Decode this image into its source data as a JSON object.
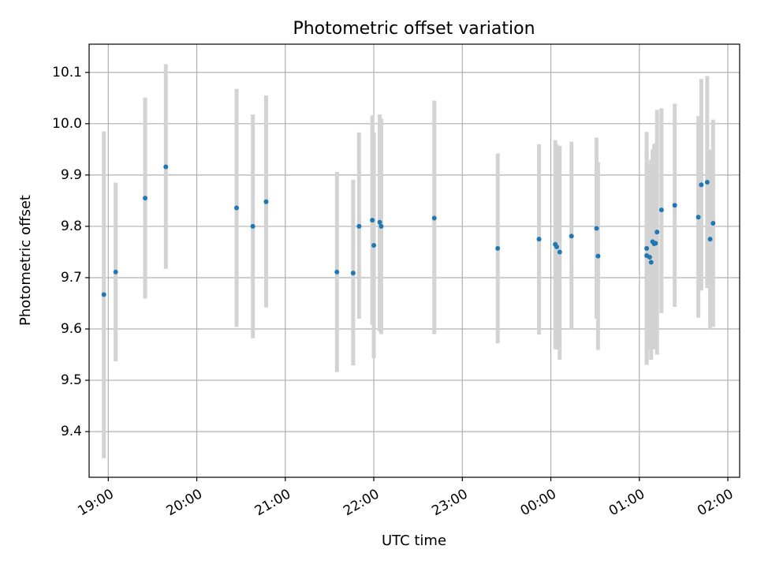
{
  "chart_data": {
    "type": "scatter",
    "title": "Photometric offset variation",
    "xlabel": "UTC time",
    "ylabel": "Photometric offset",
    "x_tick_labels": [
      "19:00",
      "20:00",
      "21:00",
      "22:00",
      "23:00",
      "00:00",
      "01:00",
      "02:00"
    ],
    "y_tick_labels": [
      "9.4",
      "9.5",
      "9.6",
      "9.7",
      "9.8",
      "9.9",
      "10.0",
      "10.1"
    ],
    "x_ticks": [
      "19:00",
      "20:00",
      "21:00",
      "22:00",
      "23:00",
      "00:00",
      "01:00",
      "02:00"
    ],
    "y_ticks": [
      9.4,
      9.5,
      9.6,
      9.7,
      9.8,
      9.9,
      10.0,
      10.1
    ],
    "xlim": [
      "18:47",
      "02:08"
    ],
    "ylim": [
      9.311,
      10.155
    ],
    "grid": true,
    "marker_color": "#1f77b4",
    "errorbar_color": "#d3d3d3",
    "points": [
      {
        "t": "18:57",
        "y": 9.667,
        "lo": 9.348,
        "hi": 9.985
      },
      {
        "t": "19:05",
        "y": 9.711,
        "lo": 9.537,
        "hi": 9.885
      },
      {
        "t": "19:25",
        "y": 9.855,
        "lo": 9.659,
        "hi": 10.051
      },
      {
        "t": "19:39",
        "y": 9.916,
        "lo": 9.717,
        "hi": 10.116
      },
      {
        "t": "20:27",
        "y": 9.836,
        "lo": 9.604,
        "hi": 10.068
      },
      {
        "t": "20:38",
        "y": 9.8,
        "lo": 9.582,
        "hi": 10.018
      },
      {
        "t": "20:47",
        "y": 9.848,
        "lo": 9.642,
        "hi": 10.055
      },
      {
        "t": "21:35",
        "y": 9.711,
        "lo": 9.516,
        "hi": 9.906
      },
      {
        "t": "21:46",
        "y": 9.709,
        "lo": 9.529,
        "hi": 9.891
      },
      {
        "t": "21:50",
        "y": 9.8,
        "lo": 9.62,
        "hi": 9.983
      },
      {
        "t": "21:59",
        "y": 9.812,
        "lo": 9.608,
        "hi": 10.016
      },
      {
        "t": "22:00",
        "y": 9.763,
        "lo": 9.543,
        "hi": 9.983
      },
      {
        "t": "22:04",
        "y": 9.808,
        "lo": 9.595,
        "hi": 10.018
      },
      {
        "t": "22:05",
        "y": 9.8,
        "lo": 9.59,
        "hi": 10.01
      },
      {
        "t": "22:41",
        "y": 9.816,
        "lo": 9.59,
        "hi": 10.045
      },
      {
        "t": "23:24",
        "y": 9.757,
        "lo": 9.572,
        "hi": 9.942
      },
      {
        "t": "23:52",
        "y": 9.775,
        "lo": 9.589,
        "hi": 9.96
      },
      {
        "t": "00:03",
        "y": 9.765,
        "lo": 9.561,
        "hi": 9.968
      },
      {
        "t": "00:04",
        "y": 9.76,
        "lo": 9.56,
        "hi": 9.96
      },
      {
        "t": "00:06",
        "y": 9.75,
        "lo": 9.54,
        "hi": 9.957
      },
      {
        "t": "00:14",
        "y": 9.781,
        "lo": 9.6,
        "hi": 9.965
      },
      {
        "t": "00:31",
        "y": 9.796,
        "lo": 9.62,
        "hi": 9.973
      },
      {
        "t": "00:32",
        "y": 9.742,
        "lo": 9.559,
        "hi": 9.925
      },
      {
        "t": "01:05",
        "y": 9.757,
        "lo": 9.547,
        "hi": 9.945
      },
      {
        "t": "01:05",
        "y": 9.743,
        "lo": 9.53,
        "hi": 9.984
      },
      {
        "t": "01:07",
        "y": 9.74,
        "lo": 9.56,
        "hi": 9.92
      },
      {
        "t": "01:08",
        "y": 9.73,
        "lo": 9.54,
        "hi": 9.93
      },
      {
        "t": "01:09",
        "y": 9.77,
        "lo": 9.57,
        "hi": 9.95
      },
      {
        "t": "01:10",
        "y": 9.766,
        "lo": 9.56,
        "hi": 9.96
      },
      {
        "t": "01:11",
        "y": 9.767,
        "lo": 9.58,
        "hi": 9.962
      },
      {
        "t": "01:12",
        "y": 9.789,
        "lo": 9.55,
        "hi": 10.027
      },
      {
        "t": "01:15",
        "y": 9.832,
        "lo": 9.631,
        "hi": 10.03
      },
      {
        "t": "01:24",
        "y": 9.841,
        "lo": 9.643,
        "hi": 10.039
      },
      {
        "t": "01:40",
        "y": 9.818,
        "lo": 9.622,
        "hi": 10.015
      },
      {
        "t": "01:42",
        "y": 9.881,
        "lo": 9.675,
        "hi": 10.087
      },
      {
        "t": "01:46",
        "y": 9.886,
        "lo": 9.68,
        "hi": 10.093
      },
      {
        "t": "01:48",
        "y": 9.775,
        "lo": 9.6,
        "hi": 9.95
      },
      {
        "t": "01:50",
        "y": 9.806,
        "lo": 9.604,
        "hi": 10.008
      }
    ]
  }
}
